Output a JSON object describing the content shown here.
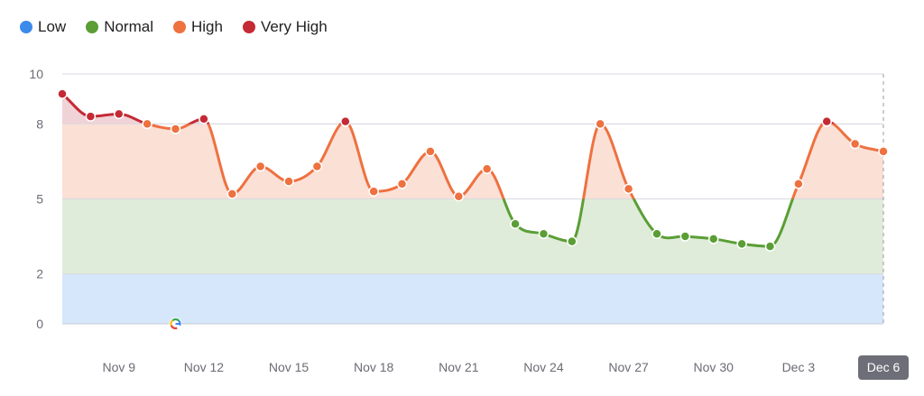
{
  "chart_data": {
    "type": "area",
    "legend_position": "top-left",
    "legend": [
      {
        "name": "Low",
        "color": "#3b8beb"
      },
      {
        "name": "Normal",
        "color": "#5a9e35"
      },
      {
        "name": "High",
        "color": "#ee7140"
      },
      {
        "name": "Very High",
        "color": "#c42a35"
      }
    ],
    "bands": [
      {
        "name": "Low",
        "from": 0,
        "to": 2,
        "fill": "#d6e6fb"
      },
      {
        "name": "Normal",
        "from": 2,
        "to": 5,
        "fill": "#dfecd9"
      },
      {
        "name": "High",
        "from": 5,
        "to": 8,
        "fill": "#fbe0d6"
      },
      {
        "name": "Very High",
        "from": 8,
        "to": 10,
        "fill": "#f0d3d7"
      }
    ],
    "ylim": [
      0,
      10
    ],
    "yticks": [
      "0",
      "2",
      "5",
      "8",
      "10"
    ],
    "ytick_values": [
      0,
      2,
      5,
      8,
      10
    ],
    "xticks": [
      "Nov 9",
      "Nov 12",
      "Nov 15",
      "Nov 18",
      "Nov 21",
      "Nov 24",
      "Nov 27",
      "Nov 30",
      "Dec 3"
    ],
    "xtick_index": [
      2,
      5,
      8,
      11,
      14,
      17,
      20,
      23,
      26
    ],
    "highlighted_xtick": "Dec 6",
    "grid": true,
    "x": [
      "Nov 7",
      "Nov 8",
      "Nov 9",
      "Nov 10",
      "Nov 11",
      "Nov 12",
      "Nov 13",
      "Nov 14",
      "Nov 15",
      "Nov 16",
      "Nov 17",
      "Nov 18",
      "Nov 19",
      "Nov 20",
      "Nov 21",
      "Nov 22",
      "Nov 23",
      "Nov 24",
      "Nov 25",
      "Nov 26",
      "Nov 27",
      "Nov 28",
      "Nov 29",
      "Nov 30",
      "Dec 1",
      "Dec 2",
      "Dec 3",
      "Dec 4",
      "Dec 5",
      "Dec 6"
    ],
    "values": [
      9.2,
      8.3,
      8.4,
      8.0,
      7.8,
      8.2,
      5.2,
      6.3,
      5.7,
      6.3,
      8.1,
      5.3,
      5.6,
      6.9,
      5.1,
      6.2,
      4.0,
      3.6,
      3.3,
      8.0,
      5.4,
      3.6,
      3.5,
      3.4,
      3.2,
      3.1,
      5.6,
      8.1,
      7.2,
      6.9
    ],
    "annotations": [
      {
        "x": "Nov 11",
        "icon": "google-icon"
      }
    ]
  }
}
